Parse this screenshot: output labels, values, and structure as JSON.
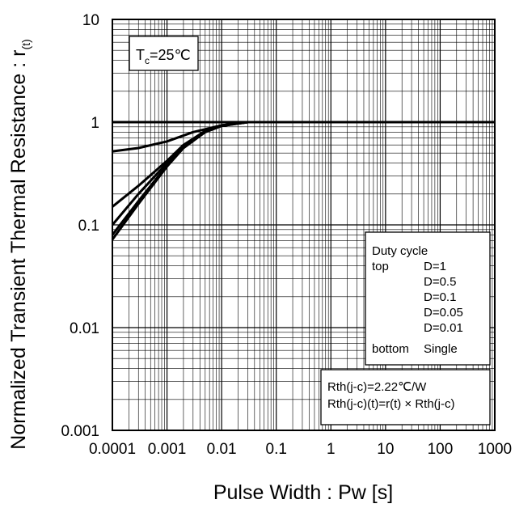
{
  "chart_data": {
    "type": "line",
    "title": "",
    "xlabel": "Pulse Width : Pw [s]",
    "ylabel": "Normalized Transient Thermal Resistance : r",
    "ylabel_sub": "(t)",
    "xscale": "log",
    "yscale": "log",
    "xlim": [
      0.0001,
      1000
    ],
    "ylim": [
      0.001,
      10
    ],
    "grid": true,
    "x_ticks": [
      "0.0001",
      "0.001",
      "0.01",
      "0.1",
      "1",
      "10",
      "100",
      "1000"
    ],
    "y_ticks": [
      "0.001",
      "0.01",
      "0.1",
      "1",
      "10"
    ],
    "condition": {
      "prefix": "T",
      "sub": "c",
      "suffix": "=25℃"
    },
    "legend": {
      "position": "right",
      "header": "Duty cycle",
      "rows": [
        {
          "tag": "top",
          "label": "D=1"
        },
        {
          "tag": "",
          "label": "D=0.5"
        },
        {
          "tag": "",
          "label": "D=0.1"
        },
        {
          "tag": "",
          "label": "D=0.05"
        },
        {
          "tag": "",
          "label": "D=0.01"
        },
        {
          "tag": "bottom",
          "label": "Single"
        }
      ]
    },
    "notes": [
      "Rth(j-c)=2.22℃/W",
      "Rth(j-c)(t)=r(t) × Rth(j-c)"
    ],
    "series": [
      {
        "name": "D=1",
        "x": [
          0.0001,
          1000
        ],
        "y": [
          1,
          1
        ]
      },
      {
        "name": "D=0.5",
        "x": [
          0.0001,
          0.0003,
          0.001,
          0.003,
          0.01,
          0.03,
          1000
        ],
        "y": [
          0.52,
          0.56,
          0.65,
          0.8,
          0.93,
          1,
          1
        ]
      },
      {
        "name": "D=0.1",
        "x": [
          0.0001,
          0.0003,
          0.001,
          0.002,
          0.005,
          0.01,
          0.03,
          1000
        ],
        "y": [
          0.15,
          0.24,
          0.42,
          0.6,
          0.82,
          0.93,
          1,
          1
        ]
      },
      {
        "name": "D=0.05",
        "x": [
          0.0001,
          0.0003,
          0.001,
          0.002,
          0.005,
          0.01,
          0.03,
          1000
        ],
        "y": [
          0.1,
          0.2,
          0.4,
          0.58,
          0.81,
          0.93,
          1,
          1
        ]
      },
      {
        "name": "D=0.01",
        "x": [
          0.0001,
          0.0003,
          0.001,
          0.002,
          0.005,
          0.01,
          0.03,
          1000
        ],
        "y": [
          0.08,
          0.17,
          0.38,
          0.57,
          0.8,
          0.92,
          1,
          1
        ]
      },
      {
        "name": "Single",
        "x": [
          0.0001,
          0.0003,
          0.001,
          0.002,
          0.005,
          0.01,
          0.03,
          1000
        ],
        "y": [
          0.072,
          0.16,
          0.37,
          0.56,
          0.8,
          0.92,
          1,
          1
        ]
      }
    ]
  }
}
